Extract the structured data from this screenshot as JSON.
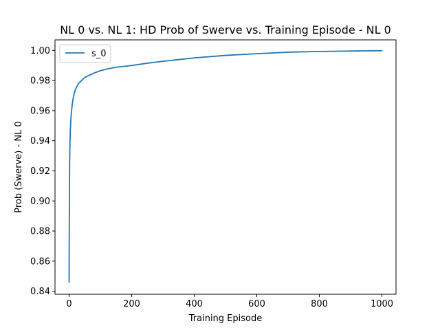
{
  "chart_data": {
    "type": "line",
    "title": "NL 0 vs. NL 1: HD Prob of Swerve vs. Training Episode - NL 0",
    "xlabel": "Training Episode",
    "ylabel": "Prob (Swerve) - NL 0",
    "xlim": [
      -45,
      1045
    ],
    "ylim": [
      0.838,
      1.007
    ],
    "xticks": [
      0,
      200,
      400,
      600,
      800,
      1000
    ],
    "xtick_labels": [
      "0",
      "200",
      "400",
      "600",
      "800",
      "1000"
    ],
    "yticks": [
      0.84,
      0.86,
      0.88,
      0.9,
      0.92,
      0.94,
      0.96,
      0.98,
      1.0
    ],
    "ytick_labels": [
      "0.84",
      "0.86",
      "0.88",
      "0.90",
      "0.92",
      "0.94",
      "0.96",
      "0.98",
      "1.00"
    ],
    "grid": false,
    "legend_position": "upper-left",
    "series": [
      {
        "name": "s_0",
        "color": "#1f77b4",
        "x": [
          0,
          1,
          2,
          3,
          4,
          6,
          8,
          10,
          13,
          16,
          20,
          25,
          30,
          40,
          50,
          60,
          80,
          100,
          125,
          150,
          200,
          250,
          300,
          400,
          500,
          600,
          700,
          800,
          900,
          1000
        ],
        "y": [
          0.846,
          0.903,
          0.928,
          0.94,
          0.947,
          0.955,
          0.96,
          0.964,
          0.968,
          0.971,
          0.974,
          0.976,
          0.978,
          0.98,
          0.982,
          0.983,
          0.985,
          0.9865,
          0.9878,
          0.9888,
          0.99,
          0.9915,
          0.9928,
          0.995,
          0.9967,
          0.9978,
          0.9988,
          0.9993,
          0.9996,
          0.9998
        ]
      }
    ]
  }
}
